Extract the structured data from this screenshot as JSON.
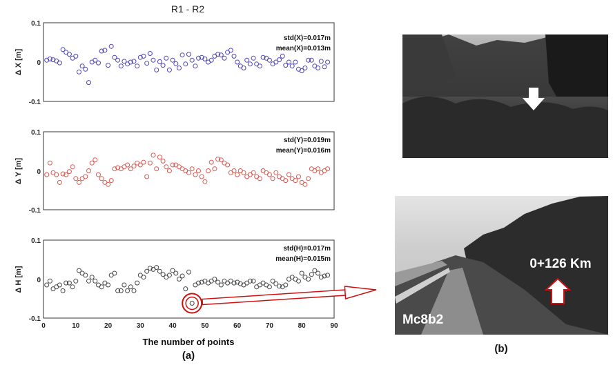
{
  "figure": {
    "panel_a_label": "(a)",
    "panel_b_label": "(b)",
    "photo_b_station": "0+126  Km",
    "photo_b_marker": "Mc8b2",
    "highlight_color": "#cc1111"
  },
  "chart_data": [
    {
      "type": "scatter",
      "title": "R1 - R2",
      "ylabel": "Δ X [m]",
      "xlabel": "",
      "xlim": [
        0,
        90
      ],
      "ylim": [
        -0.1,
        0.1
      ],
      "yticks": [
        "0.1",
        "0",
        "-0.1"
      ],
      "xticks": [],
      "stats": [
        "std(X)=0.017m",
        "mean(X)=0.013m"
      ],
      "color": "#4a43b5",
      "x": [
        1,
        2,
        3,
        4,
        5,
        6,
        7,
        8,
        9,
        10,
        11,
        12,
        13,
        14,
        15,
        16,
        17,
        18,
        19,
        20,
        21,
        22,
        23,
        24,
        25,
        26,
        27,
        28,
        29,
        30,
        31,
        32,
        33,
        34,
        35,
        36,
        37,
        38,
        39,
        40,
        41,
        42,
        43,
        44,
        45,
        46,
        47,
        48,
        49,
        50,
        51,
        52,
        53,
        54,
        55,
        56,
        57,
        58,
        59,
        60,
        61,
        62,
        63,
        64,
        65,
        66,
        67,
        68,
        69,
        70,
        71,
        72,
        73,
        74,
        75,
        76,
        77,
        78,
        79,
        80,
        81,
        82,
        83,
        84,
        85,
        86,
        87,
        88
      ],
      "y": [
        0.005,
        0.008,
        0.006,
        0.003,
        -0.002,
        0.032,
        0.025,
        0.02,
        0.01,
        0.015,
        -0.025,
        -0.01,
        -0.018,
        -0.052,
        0.0,
        0.005,
        -0.002,
        0.028,
        0.03,
        -0.008,
        0.04,
        0.012,
        0.005,
        -0.01,
        0.002,
        -0.005,
        0.0,
        0.002,
        -0.01,
        0.012,
        0.015,
        -0.003,
        0.022,
        0.005,
        -0.02,
        0.001,
        -0.008,
        0.01,
        -0.02,
        0.005,
        -0.004,
        -0.015,
        0.018,
        -0.005,
        0.02,
        0.005,
        -0.01,
        0.01,
        0.012,
        0.008,
        0.0,
        0.005,
        0.015,
        0.02,
        0.018,
        0.01,
        0.025,
        0.03,
        0.015,
        0.0,
        -0.01,
        -0.015,
        0.005,
        -0.005,
        0.01,
        -0.005,
        -0.01,
        0.012,
        0.01,
        0.005,
        -0.005,
        0.0,
        0.006,
        0.015,
        -0.008,
        0.0,
        -0.01,
        0.0,
        -0.018,
        -0.022,
        -0.015,
        0.005,
        0.005,
        -0.01,
        -0.015,
        0.002,
        -0.012,
        0.0
      ]
    },
    {
      "type": "scatter",
      "title": "",
      "ylabel": "Δ Y [m]",
      "xlabel": "",
      "xlim": [
        0,
        90
      ],
      "ylim": [
        -0.1,
        0.1
      ],
      "yticks": [
        "0.1",
        "0",
        "-0.1"
      ],
      "xticks": [],
      "stats": [
        "std(Y)=0.019m",
        "mean(Y)=0.016m"
      ],
      "color": "#d9574e",
      "x": [
        1,
        2,
        3,
        4,
        5,
        6,
        7,
        8,
        9,
        10,
        11,
        12,
        13,
        14,
        15,
        16,
        17,
        18,
        19,
        20,
        21,
        22,
        23,
        24,
        25,
        26,
        27,
        28,
        29,
        30,
        31,
        32,
        33,
        34,
        35,
        36,
        37,
        38,
        39,
        40,
        41,
        42,
        43,
        44,
        45,
        46,
        47,
        48,
        49,
        50,
        51,
        52,
        53,
        54,
        55,
        56,
        57,
        58,
        59,
        60,
        61,
        62,
        63,
        64,
        65,
        66,
        67,
        68,
        69,
        70,
        71,
        72,
        73,
        74,
        75,
        76,
        77,
        78,
        79,
        80,
        81,
        82,
        83,
        84,
        85,
        86,
        87,
        88
      ],
      "y": [
        -0.01,
        0.02,
        -0.005,
        -0.01,
        -0.03,
        -0.008,
        -0.01,
        -0.002,
        0.01,
        -0.02,
        -0.03,
        -0.02,
        -0.015,
        0.0,
        0.02,
        0.028,
        -0.01,
        -0.02,
        -0.03,
        -0.035,
        -0.025,
        0.005,
        0.008,
        0.005,
        0.01,
        0.015,
        0.005,
        0.012,
        0.02,
        0.015,
        0.022,
        -0.015,
        0.02,
        0.04,
        0.005,
        0.035,
        0.025,
        0.01,
        0.0,
        0.015,
        0.015,
        0.01,
        0.005,
        0.0,
        -0.005,
        0.005,
        -0.01,
        0.0,
        -0.015,
        -0.028,
        0.0,
        0.022,
        0.005,
        0.03,
        0.028,
        0.02,
        0.015,
        -0.005,
        0.0,
        -0.01,
        0.0,
        -0.005,
        -0.015,
        -0.01,
        -0.005,
        -0.015,
        -0.02,
        0.0,
        -0.005,
        -0.01,
        -0.02,
        -0.005,
        -0.015,
        -0.02,
        -0.025,
        -0.01,
        -0.02,
        -0.025,
        -0.015,
        -0.03,
        -0.035,
        -0.02,
        0.005,
        0.0,
        0.005,
        -0.005,
        0.0,
        0.005
      ]
    },
    {
      "type": "scatter",
      "title": "",
      "ylabel": "Δ H [m]",
      "xlabel": "The number of points",
      "xlim": [
        0,
        90
      ],
      "ylim": [
        -0.1,
        0.1
      ],
      "yticks": [
        "0.1",
        "0",
        "-0.1"
      ],
      "xticks": [
        "0",
        "10",
        "20",
        "30",
        "40",
        "50",
        "60",
        "70",
        "80",
        "90"
      ],
      "stats": [
        "std(H)=0.017m",
        "mean(H)=0.015m"
      ],
      "color": "#444444",
      "highlight_point": [
        46,
        -0.062
      ],
      "x": [
        1,
        2,
        3,
        4,
        5,
        6,
        7,
        8,
        9,
        10,
        11,
        12,
        13,
        14,
        15,
        16,
        17,
        18,
        19,
        20,
        21,
        22,
        23,
        24,
        25,
        26,
        27,
        28,
        29,
        30,
        31,
        32,
        33,
        34,
        35,
        36,
        37,
        38,
        39,
        40,
        41,
        42,
        43,
        44,
        45,
        46,
        47,
        48,
        49,
        50,
        51,
        52,
        53,
        54,
        55,
        56,
        57,
        58,
        59,
        60,
        61,
        62,
        63,
        64,
        65,
        66,
        67,
        68,
        69,
        70,
        71,
        72,
        73,
        74,
        75,
        76,
        77,
        78,
        79,
        80,
        81,
        82,
        83,
        84,
        85,
        86,
        87,
        88
      ],
      "y": [
        -0.015,
        -0.005,
        -0.025,
        -0.02,
        -0.015,
        -0.03,
        -0.01,
        -0.01,
        -0.02,
        -0.005,
        0.022,
        0.015,
        0.01,
        -0.005,
        0.005,
        -0.005,
        -0.015,
        -0.02,
        -0.01,
        -0.015,
        0.01,
        0.015,
        -0.03,
        -0.03,
        -0.015,
        -0.03,
        -0.02,
        -0.03,
        -0.01,
        0.01,
        0.005,
        0.02,
        0.028,
        0.025,
        0.03,
        0.02,
        0.012,
        0.005,
        0.01,
        0.022,
        0.015,
        0.0,
        0.008,
        -0.025,
        0.018,
        -0.062,
        -0.015,
        -0.01,
        -0.008,
        -0.005,
        -0.01,
        -0.005,
        0.0,
        -0.008,
        -0.015,
        -0.005,
        -0.01,
        -0.005,
        -0.01,
        -0.008,
        -0.012,
        -0.015,
        -0.01,
        -0.005,
        -0.005,
        -0.02,
        -0.015,
        -0.01,
        -0.015,
        -0.02,
        -0.005,
        -0.012,
        -0.018,
        -0.02,
        -0.015,
        0.0,
        0.005,
        0.0,
        -0.005,
        0.015,
        0.005,
        0.0,
        0.012,
        0.022,
        0.015,
        0.005,
        0.008,
        0.01
      ]
    }
  ]
}
